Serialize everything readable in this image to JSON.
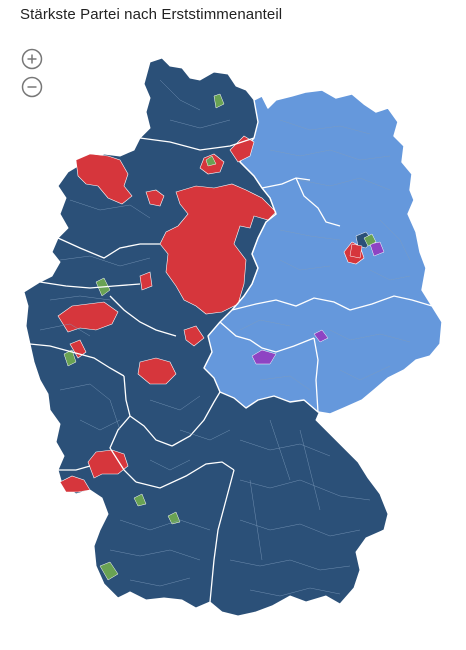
{
  "header": {
    "title": "Stärkste Partei nach Erststimmenanteil"
  },
  "controls": {
    "zoom_in_icon": "plus-circle-icon",
    "zoom_out_icon": "minus-circle-icon"
  },
  "map": {
    "colors": {
      "cdu_csu": "#2b5078",
      "afd": "#6598dc",
      "spd": "#d6363c",
      "gruene": "#69a253",
      "linke": "#8e44c3",
      "border": "#ffffff",
      "district_lines": "#7f9cbc"
    },
    "winning_party_by_area": [
      {
        "area": "west-and-south",
        "color_key": "cdu_csu"
      },
      {
        "area": "east",
        "color_key": "afd"
      }
    ]
  }
}
